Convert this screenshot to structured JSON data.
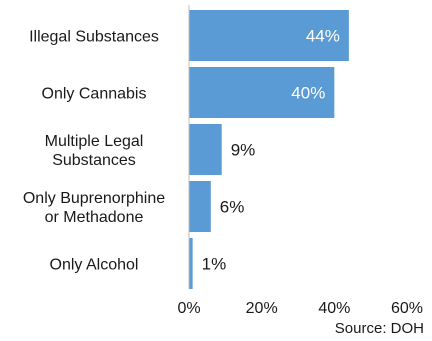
{
  "chart_data": {
    "type": "bar",
    "orientation": "horizontal",
    "categories": [
      "Illegal Substances",
      "Only Cannabis",
      "Multiple Legal Substances",
      "Only Buprenorphine or Methadone",
      "Only Alcohol"
    ],
    "category_lines": [
      [
        "Illegal Substances"
      ],
      [
        "Only Cannabis"
      ],
      [
        "Multiple Legal",
        "Substances"
      ],
      [
        "Only Buprenorphine",
        "or Methadone"
      ],
      [
        "Only Alcohol"
      ]
    ],
    "values": [
      44,
      40,
      9,
      6,
      1
    ],
    "data_labels": [
      "44%",
      "40%",
      "9%",
      "6%",
      "1%"
    ],
    "xlim": [
      0,
      60
    ],
    "x_ticks": [
      0,
      20,
      40,
      60
    ],
    "x_tick_labels": [
      "0%",
      "20%",
      "40%",
      "60%"
    ],
    "grid": false,
    "bar_color": "#5b9bd5",
    "inside_label_color": "#ffffff",
    "outside_label_color": "#1a1a1a",
    "source": "Source: DOH"
  }
}
